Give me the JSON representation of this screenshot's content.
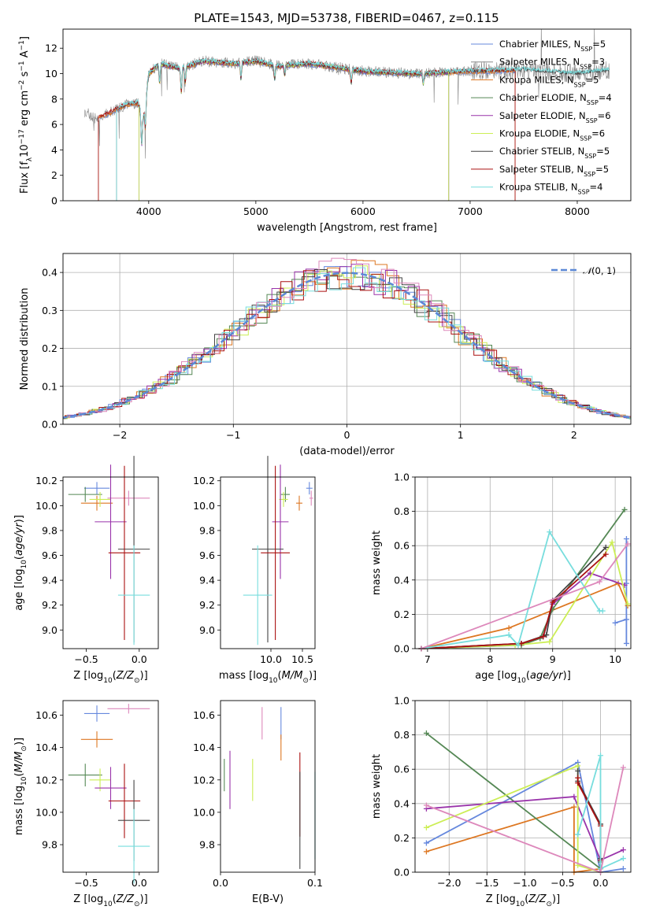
{
  "figure_title": "PLATE=1543, MJD=53738, FIBERID=0467, z=0.115",
  "colors": {
    "Chabrier MILES": "#6688dd",
    "Salpeter MILES": "#888888",
    "Kroupa MILES": "#dd7722",
    "Chabrier ELODIE": "#558855",
    "Salpeter ELODIE": "#9933aa",
    "Kroupa ELODIE": "#ccee55",
    "Chabrier STELIB": "#444444",
    "Salpeter STELIB": "#aa1111",
    "Kroupa STELIB": "#77dddd",
    "extra": "#dd88bb"
  },
  "chart_data": [
    {
      "id": "spectrum",
      "type": "line",
      "xlabel": "wavelength [Angstrom, rest frame]",
      "ylabel": "Flux [f_λ10^-17 erg cm^-2 s^-1 A^-1]",
      "xlim": [
        3200,
        8500
      ],
      "ylim": [
        0,
        13.5
      ],
      "xticks": [
        4000,
        5000,
        6000,
        7000,
        8000
      ],
      "yticks": [
        0,
        2,
        4,
        6,
        8,
        10,
        12
      ],
      "grid": false,
      "legend_position": "right",
      "legend": [
        {
          "name": "Chabrier MILES",
          "nssp": "5"
        },
        {
          "name": "Salpeter MILES",
          "nssp": "3"
        },
        {
          "name": "Kroupa MILES",
          "nssp": "5"
        },
        {
          "name": "Chabrier ELODIE",
          "nssp": "4"
        },
        {
          "name": "Salpeter ELODIE",
          "nssp": "6"
        },
        {
          "name": "Kroupa ELODIE",
          "nssp": "6"
        },
        {
          "name": "Chabrier STELIB",
          "nssp": "5"
        },
        {
          "name": "Salpeter STELIB",
          "nssp": "5"
        },
        {
          "name": "Kroupa STELIB",
          "nssp": "4"
        }
      ],
      "continuum_points": [
        [
          3400,
          7.0
        ],
        [
          3500,
          6.5
        ],
        [
          3600,
          6.8
        ],
        [
          3700,
          7.2
        ],
        [
          3800,
          7.6
        ],
        [
          3900,
          7.7
        ],
        [
          3950,
          6.5
        ],
        [
          4000,
          10.0
        ],
        [
          4100,
          10.8
        ],
        [
          4300,
          10.4
        ],
        [
          4500,
          11.0
        ],
        [
          4800,
          10.8
        ],
        [
          5000,
          11.0
        ],
        [
          5200,
          10.6
        ],
        [
          5500,
          10.8
        ],
        [
          6000,
          10.2
        ],
        [
          6500,
          10.0
        ],
        [
          7000,
          10.2
        ],
        [
          7500,
          10.3
        ],
        [
          8000,
          10.0
        ],
        [
          8300,
          10.3
        ]
      ]
    },
    {
      "id": "residuals",
      "type": "histogram",
      "xlabel": "(data-model)/error",
      "ylabel": "Normed distribution",
      "xlim": [
        -2.5,
        2.5
      ],
      "ylim": [
        0,
        0.45
      ],
      "xticks": [
        -2,
        -1,
        0,
        1,
        2
      ],
      "yticks": [
        0.0,
        0.1,
        0.2,
        0.3,
        0.4
      ],
      "grid": true,
      "legend_position": "top-right",
      "legend_label": "N(0,1)",
      "gaussian": {
        "mean": 0,
        "sigma": 1
      }
    },
    {
      "id": "age_vs_Z",
      "type": "errorbar",
      "xlabel": "Z [log10(Z/Z⊙)]",
      "ylabel": "age [log10(age/yr)]",
      "xlim": [
        -0.72,
        0.18
      ],
      "ylim": [
        8.85,
        10.23
      ],
      "xticks": [
        -0.5,
        0.0
      ],
      "yticks": [
        9.0,
        9.2,
        9.4,
        9.6,
        9.8,
        10.0,
        10.2
      ],
      "points": [
        {
          "m": "Chabrier MILES",
          "x": -0.4,
          "xerr": 0.12,
          "y": 10.14,
          "yerr": 0.05
        },
        {
          "m": "extra",
          "x": -0.1,
          "xerr": 0.2,
          "y": 10.06,
          "yerr": 0.06
        },
        {
          "m": "Kroupa MILES",
          "x": -0.4,
          "xerr": 0.15,
          "y": 10.02,
          "yerr": 0.06
        },
        {
          "m": "Chabrier ELODIE",
          "x": -0.51,
          "xerr": 0.16,
          "y": 10.09,
          "yerr": 0.06
        },
        {
          "m": "Kroupa ELODIE",
          "x": -0.37,
          "xerr": 0.1,
          "y": 10.05,
          "yerr": 0.06
        },
        {
          "m": "Salpeter ELODIE",
          "x": -0.27,
          "xerr": 0.15,
          "y": 9.87,
          "yerr": 0.46
        },
        {
          "m": "Chabrier STELIB",
          "x": -0.05,
          "xerr": 0.15,
          "y": 9.65,
          "yerr": 0.75
        },
        {
          "m": "Salpeter STELIB",
          "x": -0.14,
          "xerr": 0.15,
          "y": 9.62,
          "yerr": 0.7
        },
        {
          "m": "Kroupa STELIB",
          "x": -0.05,
          "xerr": 0.15,
          "y": 9.28,
          "yerr": 0.4
        }
      ]
    },
    {
      "id": "age_vs_mass",
      "type": "errorbar",
      "xlabel": "mass [log10(M/M⊙)]",
      "ylabel": "",
      "xlim": [
        9.2,
        10.7
      ],
      "ylim": [
        8.85,
        10.23
      ],
      "xticks": [
        10.0,
        10.5
      ],
      "yticks": [
        9.0,
        9.2,
        9.4,
        9.6,
        9.8,
        10.0,
        10.2
      ],
      "points": [
        {
          "m": "Chabrier MILES",
          "x": 10.61,
          "xerr": 0.05,
          "y": 10.14,
          "yerr": 0.05
        },
        {
          "m": "extra",
          "x": 10.64,
          "xerr": 0.03,
          "y": 10.06,
          "yerr": 0.06
        },
        {
          "m": "Kroupa MILES",
          "x": 10.45,
          "xerr": 0.05,
          "y": 10.02,
          "yerr": 0.06
        },
        {
          "m": "Chabrier ELODIE",
          "x": 10.23,
          "xerr": 0.07,
          "y": 10.09,
          "yerr": 0.06
        },
        {
          "m": "Kroupa ELODIE",
          "x": 10.2,
          "xerr": 0.07,
          "y": 10.05,
          "yerr": 0.06
        },
        {
          "m": "Salpeter ELODIE",
          "x": 10.15,
          "xerr": 0.13,
          "y": 9.87,
          "yerr": 0.46
        },
        {
          "m": "Chabrier STELIB",
          "x": 9.95,
          "xerr": 0.25,
          "y": 9.65,
          "yerr": 0.75
        },
        {
          "m": "Salpeter STELIB",
          "x": 10.07,
          "xerr": 0.23,
          "y": 9.62,
          "yerr": 0.7
        },
        {
          "m": "Kroupa STELIB",
          "x": 9.79,
          "xerr": 0.23,
          "y": 9.28,
          "yerr": 0.4
        }
      ]
    },
    {
      "id": "weight_vs_age",
      "type": "line",
      "xlabel": "age [log10(age/yr)]",
      "ylabel": "mass weight",
      "xlim": [
        6.8,
        10.25
      ],
      "ylim": [
        0,
        1.0
      ],
      "xticks": [
        7,
        8,
        9,
        10
      ],
      "yticks": [
        0.0,
        0.2,
        0.4,
        0.6,
        0.8,
        1.0
      ],
      "grid": true,
      "series": [
        {
          "m": "Chabrier MILES",
          "x": [
            10.0,
            10.18,
            10.18,
            10.18,
            10.18
          ],
          "y": [
            0.15,
            0.17,
            0.03,
            0.38,
            0.64
          ]
        },
        {
          "m": "Kroupa MILES",
          "x": [
            6.9,
            8.3,
            10.05,
            10.2
          ],
          "y": [
            0.0,
            0.12,
            0.38,
            0.25
          ]
        },
        {
          "m": "Chabrier ELODIE",
          "x": [
            6.9,
            8.5,
            8.8,
            9.0,
            10.15
          ],
          "y": [
            0.0,
            0.02,
            0.06,
            0.23,
            0.81
          ]
        },
        {
          "m": "Salpeter ELODIE",
          "x": [
            6.9,
            8.5,
            8.85,
            9.0,
            9.6,
            10.15
          ],
          "y": [
            0.0,
            0.03,
            0.07,
            0.26,
            0.44,
            0.37
          ]
        },
        {
          "m": "Kroupa ELODIE",
          "x": [
            6.9,
            8.4,
            8.95,
            9.95,
            10.2
          ],
          "y": [
            0.0,
            0.02,
            0.04,
            0.62,
            0.26
          ]
        },
        {
          "m": "Chabrier STELIB",
          "x": [
            6.9,
            8.5,
            8.9,
            9.0,
            9.85
          ],
          "y": [
            0.0,
            0.03,
            0.08,
            0.28,
            0.59
          ]
        },
        {
          "m": "Salpeter STELIB",
          "x": [
            6.9,
            8.5,
            8.85,
            9.0,
            9.85
          ],
          "y": [
            0.0,
            0.03,
            0.07,
            0.27,
            0.55
          ]
        },
        {
          "m": "Kroupa STELIB",
          "x": [
            6.9,
            8.3,
            8.45,
            8.95,
            9.75,
            9.8
          ],
          "y": [
            0.0,
            0.08,
            0.02,
            0.68,
            0.22,
            0.22
          ]
        },
        {
          "m": "extra",
          "x": [
            6.9,
            9.75,
            10.2
          ],
          "y": [
            0.0,
            0.39,
            0.61
          ]
        }
      ]
    },
    {
      "id": "mass_vs_Z",
      "type": "errorbar",
      "xlabel": "Z [log10(Z/Z⊙)]",
      "ylabel": "mass [log10(M/M⊙)]",
      "xlim": [
        -0.72,
        0.18
      ],
      "ylim": [
        9.63,
        10.69
      ],
      "xticks": [
        -0.5,
        0.0
      ],
      "yticks": [
        9.8,
        10.0,
        10.2,
        10.4,
        10.6
      ],
      "points": [
        {
          "m": "extra",
          "x": -0.1,
          "xerr": 0.2,
          "y": 10.64,
          "yerr": 0.03
        },
        {
          "m": "Chabrier MILES",
          "x": -0.4,
          "xerr": 0.12,
          "y": 10.61,
          "yerr": 0.05
        },
        {
          "m": "Kroupa MILES",
          "x": -0.4,
          "xerr": 0.15,
          "y": 10.45,
          "yerr": 0.05
        },
        {
          "m": "Chabrier ELODIE",
          "x": -0.51,
          "xerr": 0.16,
          "y": 10.23,
          "yerr": 0.07
        },
        {
          "m": "Kroupa ELODIE",
          "x": -0.37,
          "xerr": 0.1,
          "y": 10.2,
          "yerr": 0.07
        },
        {
          "m": "Salpeter ELODIE",
          "x": -0.27,
          "xerr": 0.15,
          "y": 10.15,
          "yerr": 0.13
        },
        {
          "m": "Salpeter STELIB",
          "x": -0.14,
          "xerr": 0.15,
          "y": 10.07,
          "yerr": 0.23
        },
        {
          "m": "Chabrier STELIB",
          "x": -0.05,
          "xerr": 0.15,
          "y": 9.95,
          "yerr": 0.25
        },
        {
          "m": "Kroupa STELIB",
          "x": -0.05,
          "xerr": 0.15,
          "y": 9.79,
          "yerr": 0.23
        }
      ]
    },
    {
      "id": "mass_vs_ebv",
      "type": "errorbar",
      "xlabel": "E(B-V)",
      "ylabel": "",
      "xlim": [
        0.0,
        0.1
      ],
      "ylim": [
        9.63,
        10.69
      ],
      "xticks": [
        0.0,
        0.1
      ],
      "yticks": [
        9.8,
        10.0,
        10.2,
        10.4,
        10.6
      ],
      "points": [
        {
          "m": "extra",
          "x": 0.044,
          "xerr": 0,
          "y": 10.55,
          "yerr": 0.1
        },
        {
          "m": "Chabrier MILES",
          "x": 0.064,
          "xerr": 0,
          "y": 10.55,
          "yerr": 0.1
        },
        {
          "m": "Kroupa MILES",
          "x": 0.064,
          "xerr": 0,
          "y": 10.4,
          "yerr": 0.08
        },
        {
          "m": "Chabrier ELODIE",
          "x": 0.004,
          "xerr": 0,
          "y": 10.23,
          "yerr": 0.1
        },
        {
          "m": "Salpeter ELODIE",
          "x": 0.01,
          "xerr": 0,
          "y": 10.2,
          "yerr": 0.18
        },
        {
          "m": "Kroupa ELODIE",
          "x": 0.034,
          "xerr": 0,
          "y": 10.2,
          "yerr": 0.13
        },
        {
          "m": "Salpeter STELIB",
          "x": 0.084,
          "xerr": 0,
          "y": 10.11,
          "yerr": 0.26
        },
        {
          "m": "Chabrier STELIB",
          "x": 0.084,
          "xerr": 0,
          "y": 9.95,
          "yerr": 0.3
        },
        {
          "m": "Kroupa STELIB",
          "x": 0.1,
          "xerr": 0,
          "y": 9.98,
          "yerr": 0.27
        }
      ]
    },
    {
      "id": "weight_vs_Z",
      "type": "line",
      "xlabel": "Z [log10(Z/Z⊙)]",
      "ylabel": "mass weight",
      "xlim": [
        -2.45,
        0.4
      ],
      "ylim": [
        0,
        1.0
      ],
      "xticks": [
        -2.0,
        -1.5,
        -1.0,
        -0.5,
        0.0
      ],
      "yticks": [
        0.0,
        0.2,
        0.4,
        0.6,
        0.8,
        1.0
      ],
      "grid": true,
      "series": [
        {
          "m": "Chabrier MILES",
          "x": [
            -2.3,
            -0.3,
            0.0,
            0.3
          ],
          "y": [
            0.17,
            0.64,
            0.0,
            0.02
          ]
        },
        {
          "m": "Kroupa MILES",
          "x": [
            -2.3,
            -0.35,
            -0.35,
            0.0
          ],
          "y": [
            0.12,
            0.38,
            0.0,
            0.02
          ]
        },
        {
          "m": "Chabrier ELODIE",
          "x": [
            -2.3,
            0.0,
            0.0
          ],
          "y": [
            0.81,
            0.02,
            0.06
          ]
        },
        {
          "m": "Salpeter ELODIE",
          "x": [
            -2.3,
            -0.35,
            0.0,
            0.3
          ],
          "y": [
            0.37,
            0.44,
            0.07,
            0.13
          ]
        },
        {
          "m": "Kroupa ELODIE",
          "x": [
            -2.3,
            -0.3,
            -0.3,
            0.0
          ],
          "y": [
            0.26,
            0.62,
            0.04,
            0.0
          ]
        },
        {
          "m": "Chabrier STELIB",
          "x": [
            -0.3,
            -0.3,
            0.0,
            0.0
          ],
          "y": [
            0.59,
            0.53,
            0.28,
            0.08
          ]
        },
        {
          "m": "Salpeter STELIB",
          "x": [
            -0.3,
            -0.3,
            0.0,
            0.0
          ],
          "y": [
            0.55,
            0.52,
            0.27,
            0.07
          ]
        },
        {
          "m": "Kroupa STELIB",
          "x": [
            -0.3,
            -0.3,
            0.0,
            0.0,
            0.3
          ],
          "y": [
            0.22,
            0.22,
            0.68,
            0.02,
            0.08
          ]
        },
        {
          "m": "extra",
          "x": [
            -2.3,
            0.0,
            0.3
          ],
          "y": [
            0.39,
            0.0,
            0.61
          ]
        }
      ]
    }
  ]
}
